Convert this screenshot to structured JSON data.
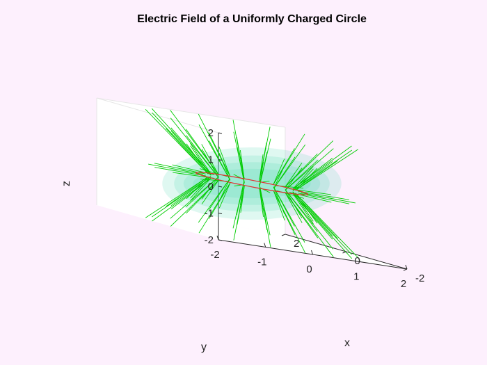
{
  "chart_data": {
    "type": "3d-field-lines",
    "title": "Electric Field of a Uniformly Charged Circle",
    "xlabel": "x",
    "ylabel": "y",
    "zlabel": "z",
    "xlim": [
      -2,
      2
    ],
    "ylim": [
      -2,
      2
    ],
    "zlim": [
      -2,
      2
    ],
    "x_ticks": [
      "-2",
      "0",
      "2"
    ],
    "y_ticks": [
      "-2",
      "-1",
      "0",
      "1",
      "2"
    ],
    "z_ticks": [
      "-2",
      "-1",
      "0",
      "1",
      "2"
    ],
    "grid": false,
    "charge_ring": {
      "radius": 1,
      "z": 0,
      "color": "#e03030"
    },
    "field_line_color": "#00cc00",
    "equipotential_color": "#4fd6b0",
    "equipotential_surfaces": [
      {
        "semi_axis_r": 1.9,
        "semi_axis_z": 1.35
      },
      {
        "semi_axis_r": 1.65,
        "semi_axis_z": 1.05
      },
      {
        "semi_axis_r": 1.45,
        "semi_axis_z": 0.8
      },
      {
        "semi_axis_r": 1.25,
        "semi_axis_z": 0.55
      }
    ]
  }
}
